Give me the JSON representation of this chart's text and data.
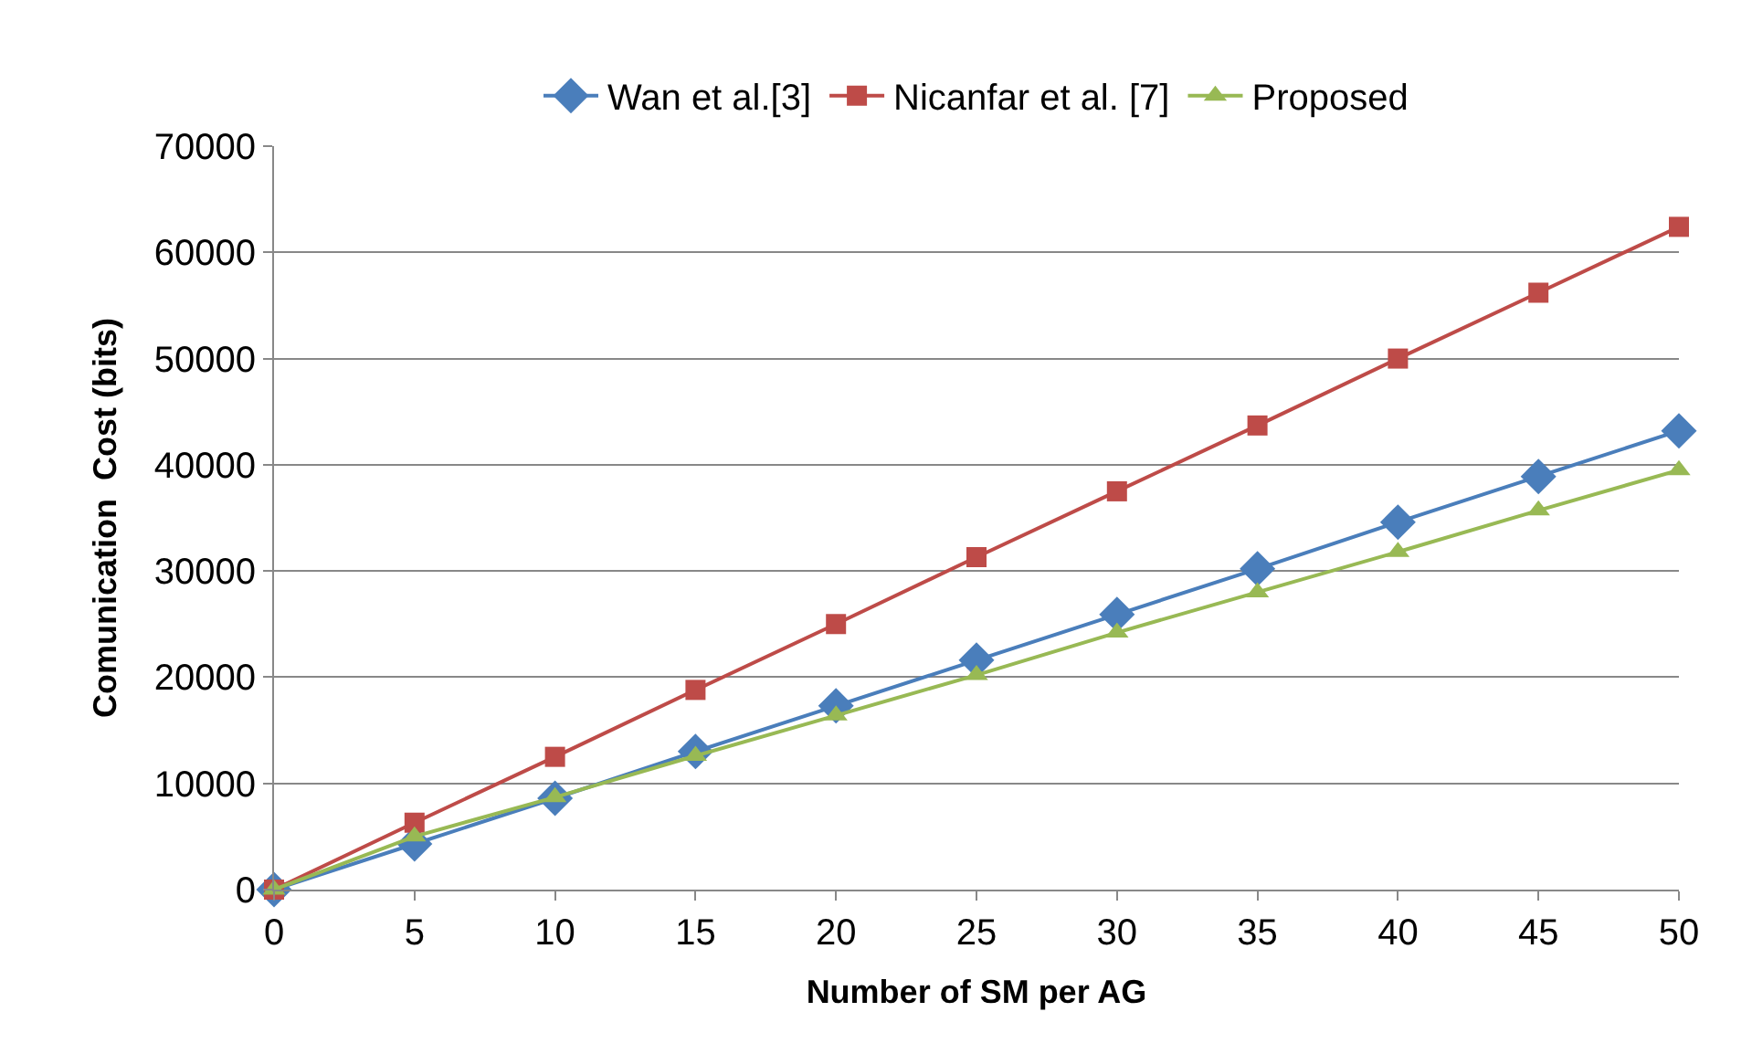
{
  "chart_data": {
    "type": "line",
    "xlabel": "Number of SM per AG",
    "ylabel": "Comunication  Cost (bits)",
    "categories": [
      "0",
      "5",
      "10",
      "15",
      "20",
      "25",
      "30",
      "35",
      "40",
      "45",
      "50"
    ],
    "series": [
      {
        "name": "Wan et al.[3]",
        "color": "#4a7ebb",
        "marker": "diamond",
        "values": [
          0,
          4300,
          8600,
          13000,
          17300,
          21600,
          25900,
          30200,
          34600,
          38900,
          43200
        ]
      },
      {
        "name": "Nicanfar et al. [7]",
        "color": "#be4b48",
        "marker": "square",
        "values": [
          0,
          6300,
          12500,
          18800,
          25000,
          31300,
          37500,
          43700,
          50000,
          56200,
          62400
        ]
      },
      {
        "name": "Proposed",
        "color": "#98b954",
        "marker": "triangle",
        "values": [
          0,
          5000,
          8700,
          12600,
          16400,
          20200,
          24200,
          28000,
          31800,
          35700,
          39500
        ]
      }
    ],
    "ylim": [
      0,
      70000
    ],
    "yticks": [
      0,
      10000,
      20000,
      30000,
      40000,
      50000,
      60000,
      70000
    ],
    "grid": "y",
    "legend": "top",
    "line_style": "solid"
  }
}
